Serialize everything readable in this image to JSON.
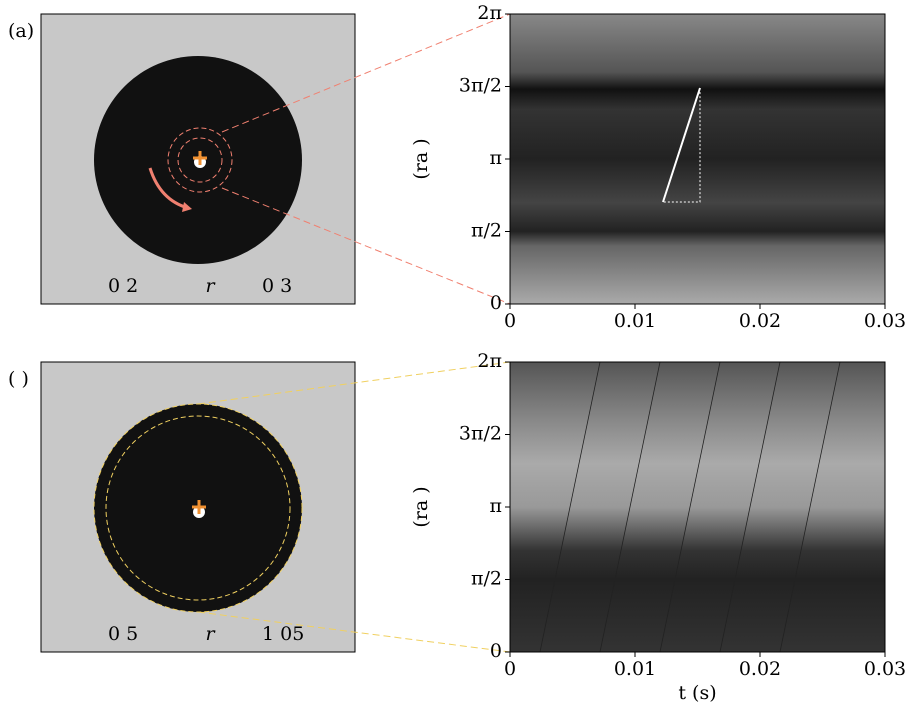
{
  "chart_data": [
    {
      "type": "image",
      "panel_label": "(a)",
      "inset_texts": [
        "0 2",
        "r",
        "0 3"
      ],
      "ylabel": "(ra )",
      "xlim": [
        0,
        0.03
      ],
      "ylim": [
        0,
        6.283185
      ],
      "xticks": [
        0,
        0.01,
        0.02,
        0.03
      ],
      "yticks": [
        0,
        {
          "value": 1.570796,
          "label": "π/2"
        },
        {
          "value": 3.141593,
          "label": "π"
        },
        {
          "value": 4.712389,
          "label": "3π/2"
        },
        {
          "value": 6.283185,
          "label": "2π"
        }
      ]
    },
    {
      "type": "image",
      "panel_label": "( )",
      "inset_texts": [
        "0   5",
        "r",
        "1 05"
      ],
      "ylabel": "(ra )",
      "xlabel": "t (s)",
      "xlim": [
        0,
        0.03
      ],
      "ylim": [
        0,
        6.283185
      ],
      "xticks": [
        0,
        0.01,
        0.02,
        0.03
      ],
      "yticks": [
        0,
        {
          "value": 1.570796,
          "label": "π/2"
        },
        {
          "value": 3.141593,
          "label": "π"
        },
        {
          "value": 4.712389,
          "label": "3π/2"
        },
        {
          "value": 6.283185,
          "label": "2π"
        }
      ]
    }
  ]
}
